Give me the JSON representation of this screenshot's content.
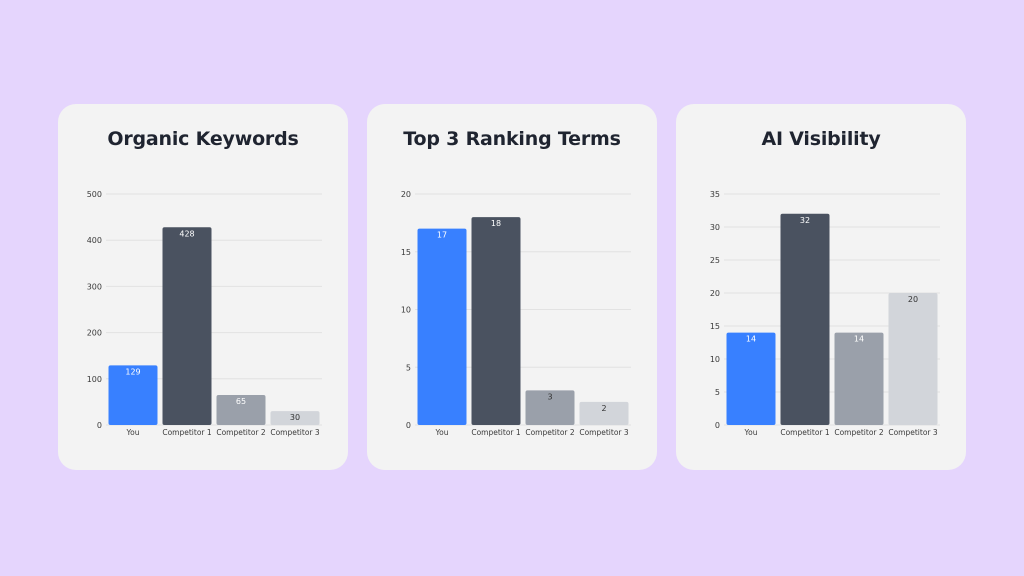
{
  "colors": {
    "background": "#e5d5fd",
    "card": "#f3f3f3",
    "gridline": "#e2e2e2",
    "you": "#3880ff",
    "competitor1": "#4a5260",
    "competitor2": "#9aa0aa",
    "competitor3": "#d2d5da"
  },
  "chart_data": [
    {
      "type": "bar",
      "title": "Organic Keywords",
      "categories": [
        "You",
        "Competitor 1",
        "Competitor 2",
        "Competitor 3"
      ],
      "values": [
        129,
        428,
        65,
        30
      ],
      "yticks": [
        0,
        100,
        200,
        300,
        400,
        500
      ],
      "ylim": [
        0,
        500
      ],
      "grid": true,
      "bar_colors": [
        "#3880ff",
        "#4a5260",
        "#9aa0aa",
        "#d2d5da"
      ],
      "label_colors": [
        "#ffffff",
        "#ffffff",
        "#ffffff",
        "#333333"
      ]
    },
    {
      "type": "bar",
      "title": "Top 3 Ranking Terms",
      "categories": [
        "You",
        "Competitor 1",
        "Competitor 2",
        "Competitor 3"
      ],
      "values": [
        17,
        18,
        3,
        2
      ],
      "yticks": [
        0,
        5,
        10,
        15,
        20
      ],
      "ylim": [
        0,
        20
      ],
      "grid": true,
      "bar_colors": [
        "#3880ff",
        "#4a5260",
        "#9aa0aa",
        "#d2d5da"
      ],
      "label_colors": [
        "#ffffff",
        "#ffffff",
        "#333333",
        "#333333"
      ]
    },
    {
      "type": "bar",
      "title": "AI Visibility",
      "categories": [
        "You",
        "Competitor 1",
        "Competitor 2",
        "Competitor 3"
      ],
      "values": [
        14,
        32,
        14,
        20
      ],
      "yticks": [
        0,
        5,
        10,
        15,
        20,
        25,
        30,
        35
      ],
      "ylim": [
        0,
        35
      ],
      "grid": true,
      "bar_colors": [
        "#3880ff",
        "#4a5260",
        "#9aa0aa",
        "#d2d5da"
      ],
      "label_colors": [
        "#ffffff",
        "#ffffff",
        "#ffffff",
        "#333333"
      ]
    }
  ]
}
